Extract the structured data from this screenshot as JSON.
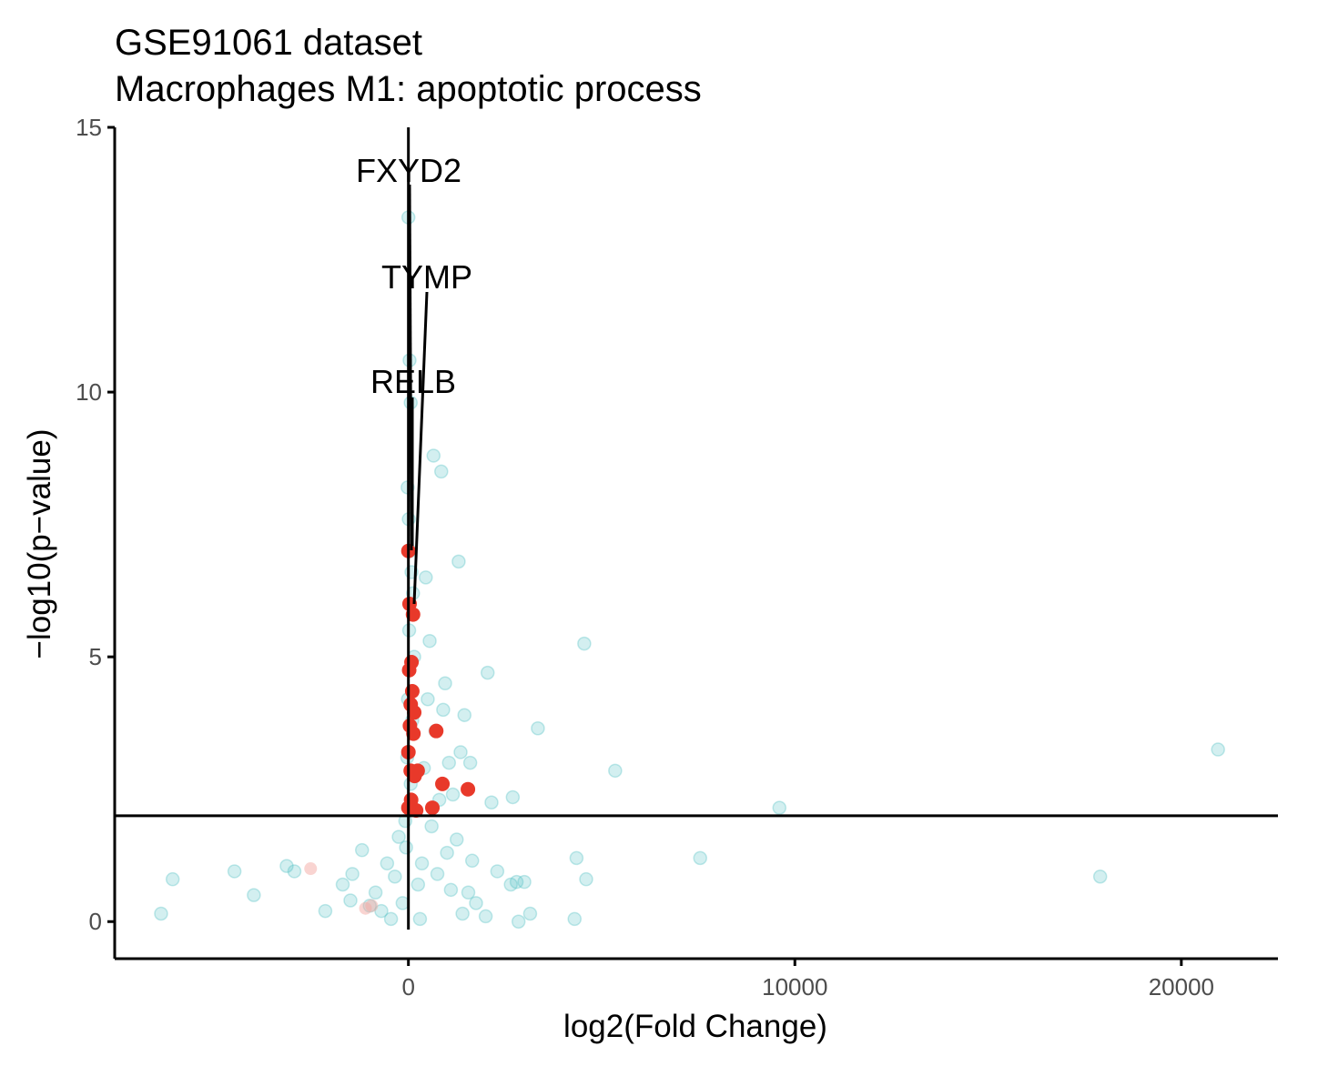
{
  "chart_data": {
    "type": "scatter",
    "title": "GSE91061 dataset",
    "subtitle": "Macrophages M1: apoptotic process",
    "xlabel": "log2(Fold Change)",
    "ylabel": "−log10(p−value)",
    "xlim": [
      -7600,
      22500
    ],
    "ylim": [
      -0.7,
      15
    ],
    "x_ticks": [
      0,
      10000,
      20000
    ],
    "x_tick_labels": [
      "0",
      "10000",
      "20000"
    ],
    "y_ticks": [
      0,
      5,
      10,
      15
    ],
    "y_tick_labels": [
      "0",
      "5",
      "10",
      "15"
    ],
    "grid": false,
    "legend": "none",
    "reference_lines": {
      "vertical_x": 0,
      "horizontal_y": 2
    },
    "colors": {
      "background_point": "#4fc1c3",
      "highlight_point": "#e8392a",
      "pale_red_point": "#f4a9a3"
    },
    "series": [
      {
        "role": "background",
        "points": [
          [
            -6400,
            0.15
          ],
          [
            -6100,
            0.8
          ],
          [
            -4500,
            0.95
          ],
          [
            -4000,
            0.5
          ],
          [
            -3150,
            1.05
          ],
          [
            -2950,
            0.95
          ],
          [
            -2150,
            0.2
          ],
          [
            -1700,
            0.7
          ],
          [
            -1500,
            0.4
          ],
          [
            -1450,
            0.9
          ],
          [
            -1200,
            1.35
          ],
          [
            -1000,
            0.3
          ],
          [
            -850,
            0.55
          ],
          [
            -700,
            0.2
          ],
          [
            -550,
            1.1
          ],
          [
            -450,
            0.05
          ],
          [
            -350,
            0.85
          ],
          [
            -250,
            1.6
          ],
          [
            -150,
            0.35
          ],
          [
            -80,
            1.9
          ],
          [
            -30,
            3.1
          ],
          [
            0,
            13.3
          ],
          [
            30,
            10.6
          ],
          [
            60,
            9.8
          ],
          [
            -20,
            8.2
          ],
          [
            10,
            7.6
          ],
          [
            40,
            7.0
          ],
          [
            80,
            6.6
          ],
          [
            120,
            6.2
          ],
          [
            20,
            5.5
          ],
          [
            150,
            5.0
          ],
          [
            -10,
            4.2
          ],
          [
            100,
            3.8
          ],
          [
            60,
            2.6
          ],
          [
            200,
            2.1
          ],
          [
            -60,
            1.4
          ],
          [
            250,
            0.7
          ],
          [
            300,
            0.05
          ],
          [
            350,
            1.1
          ],
          [
            400,
            2.9
          ],
          [
            450,
            6.5
          ],
          [
            500,
            4.2
          ],
          [
            550,
            5.3
          ],
          [
            600,
            1.8
          ],
          [
            650,
            8.8
          ],
          [
            700,
            3.6
          ],
          [
            750,
            0.9
          ],
          [
            800,
            2.3
          ],
          [
            850,
            8.5
          ],
          [
            900,
            4.0
          ],
          [
            950,
            4.5
          ],
          [
            1000,
            1.3
          ],
          [
            1050,
            3.0
          ],
          [
            1100,
            0.6
          ],
          [
            1150,
            2.4
          ],
          [
            1250,
            1.55
          ],
          [
            1300,
            6.8
          ],
          [
            1350,
            3.2
          ],
          [
            1400,
            0.15
          ],
          [
            1450,
            3.9
          ],
          [
            1550,
            0.55
          ],
          [
            1600,
            3.0
          ],
          [
            1650,
            1.15
          ],
          [
            1750,
            0.35
          ],
          [
            2000,
            0.1
          ],
          [
            2050,
            4.7
          ],
          [
            2150,
            2.25
          ],
          [
            2300,
            0.95
          ],
          [
            2650,
            0.7
          ],
          [
            2700,
            2.35
          ],
          [
            2800,
            0.75
          ],
          [
            2850,
            0.0
          ],
          [
            3000,
            0.75
          ],
          [
            3150,
            0.15
          ],
          [
            3350,
            3.65
          ],
          [
            4300,
            0.05
          ],
          [
            4350,
            1.2
          ],
          [
            4550,
            5.25
          ],
          [
            4600,
            0.8
          ],
          [
            5350,
            2.85
          ],
          [
            7550,
            1.2
          ],
          [
            9600,
            2.15
          ],
          [
            17900,
            0.85
          ],
          [
            20950,
            3.25
          ]
        ]
      },
      {
        "role": "highlight",
        "points": [
          [
            0,
            7.0
          ],
          [
            30,
            6.0
          ],
          [
            120,
            5.8
          ],
          [
            80,
            4.9
          ],
          [
            20,
            4.75
          ],
          [
            100,
            4.35
          ],
          [
            60,
            4.1
          ],
          [
            150,
            3.95
          ],
          [
            40,
            3.7
          ],
          [
            130,
            3.55
          ],
          [
            720,
            3.6
          ],
          [
            0,
            3.2
          ],
          [
            60,
            2.85
          ],
          [
            160,
            2.75
          ],
          [
            240,
            2.85
          ],
          [
            880,
            2.6
          ],
          [
            1540,
            2.5
          ],
          [
            70,
            2.3
          ],
          [
            200,
            2.1
          ],
          [
            620,
            2.15
          ],
          [
            0,
            2.15
          ]
        ]
      },
      {
        "role": "pale-red",
        "points": [
          [
            -2530,
            1.0
          ],
          [
            -1110,
            0.25
          ],
          [
            -950,
            0.3
          ]
        ]
      }
    ],
    "annotations": [
      {
        "label": "FXYD2",
        "x": 0,
        "y": 14.0
      },
      {
        "label": "TYMP",
        "x": 350,
        "y": 12.0
      },
      {
        "label": "RELB",
        "x": 0,
        "y": 10.0
      }
    ]
  }
}
